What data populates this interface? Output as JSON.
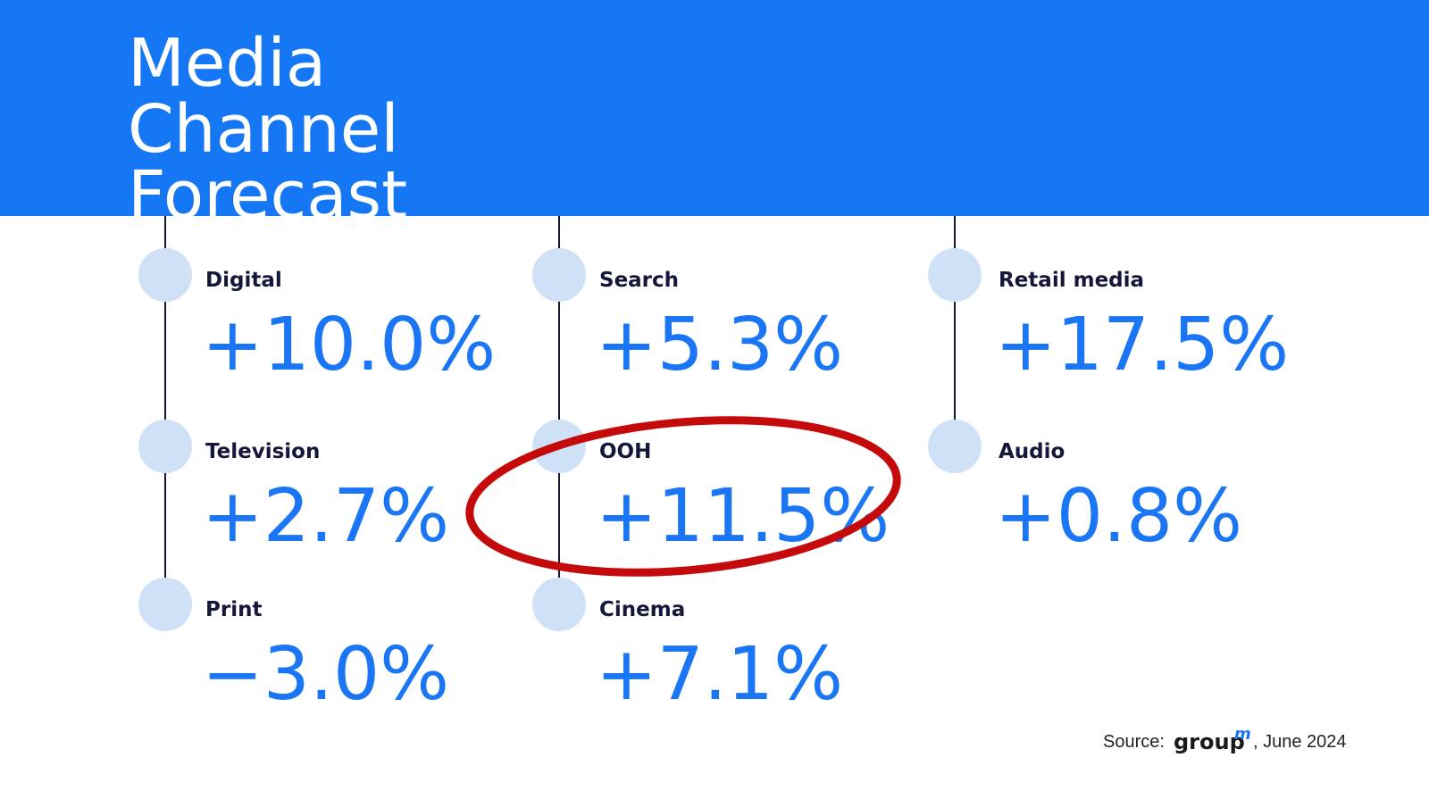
{
  "title": [
    "Media",
    "Channel",
    "Forecast"
  ],
  "items": [
    {
      "label": "Digital",
      "value": "+10.0%"
    },
    {
      "label": "Television",
      "value": "+2.7%"
    },
    {
      "label": "Print",
      "value": "−3.0%"
    },
    {
      "label": "Search",
      "value": "+5.3%"
    },
    {
      "label": "OOH",
      "value": "+11.5%"
    },
    {
      "label": "Cinema",
      "value": "+7.1%"
    },
    {
      "label": "Retail media",
      "value": "+17.5%"
    },
    {
      "label": "Audio",
      "value": "+0.8%"
    }
  ],
  "source": {
    "prefix": "Source:",
    "brand": "group",
    "brand_mark": "m",
    "date": ", June 2024"
  }
}
